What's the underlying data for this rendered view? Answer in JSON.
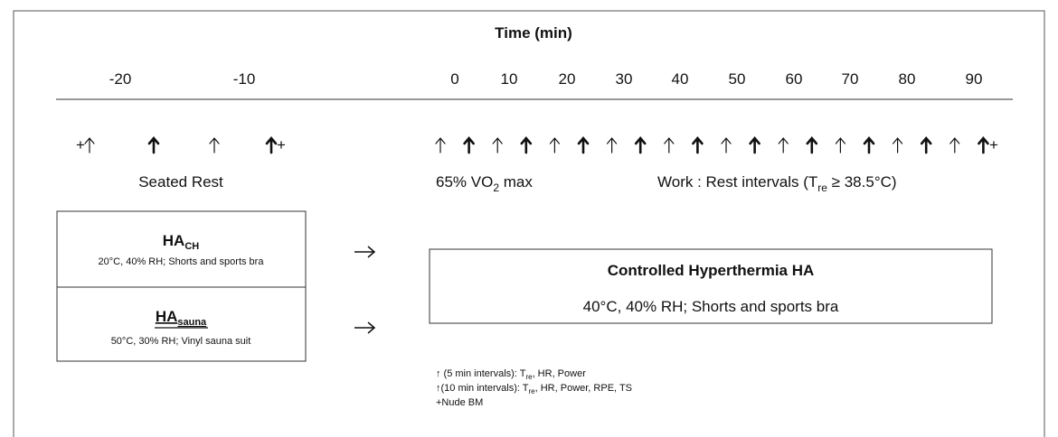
{
  "axis": {
    "title": "Time (min)",
    "ticks": [
      "-20",
      "-10",
      "0",
      "10",
      "20",
      "30",
      "40",
      "50",
      "60",
      "70",
      "80",
      "90"
    ]
  },
  "marker": "+",
  "phases": {
    "rest": "Seated Rest",
    "exercise": {
      "text": "65% VO",
      "sub": "2",
      "after": " max"
    },
    "intervals": {
      "text": "Work : Rest intervals (T",
      "sub": "re",
      "after": " ≥ 38.5°C)"
    }
  },
  "protocols": [
    {
      "name": "HA",
      "sub": "CH",
      "conditions": "20°C, 40% RH; Shorts and sports bra"
    },
    {
      "name": "HA",
      "sub": "sauna",
      "conditions": "50°C, 30% RH; Vinyl sauna suit"
    }
  ],
  "main_box": {
    "title": "Controlled Hyperthermia HA",
    "conditions": "40°C, 40% RH; Shorts and sports bra"
  },
  "legend": [
    {
      "text": "↑ (5 min intervals): T",
      "sub": "re",
      "after": ", HR, Power"
    },
    {
      "text": "↑(10 min intervals): T",
      "sub": "re",
      "after": ", HR, Power, RPE, TS"
    },
    {
      "text": "+Nude BM"
    }
  ]
}
